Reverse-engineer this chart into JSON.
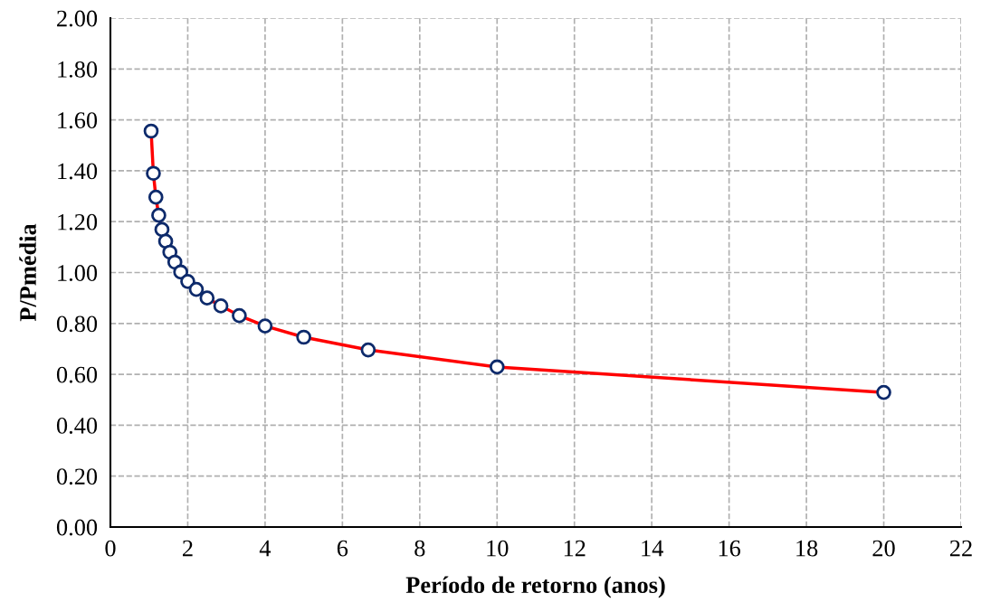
{
  "chart_data": {
    "type": "line",
    "xlabel": "Período de retorno (anos)",
    "ylabel": "P/Pmédia",
    "x": [
      1.053,
      1.111,
      1.176,
      1.25,
      1.333,
      1.429,
      1.538,
      1.667,
      1.818,
      2.0,
      2.222,
      2.5,
      2.857,
      3.333,
      4.0,
      5.0,
      6.667,
      10.0,
      20.0
    ],
    "series": [
      {
        "color": "#ff0000",
        "values": [
          1.556,
          1.39,
          1.296,
          1.225,
          1.169,
          1.123,
          1.08,
          1.041,
          1.002,
          0.965,
          0.934,
          0.9,
          0.869,
          0.831,
          0.79,
          0.746,
          0.696,
          0.629,
          0.529
        ]
      }
    ],
    "xlim": [
      0,
      22
    ],
    "xticks": [
      0,
      2,
      4,
      6,
      8,
      10,
      12,
      14,
      16,
      18,
      20,
      22
    ],
    "ylim": [
      0,
      2
    ],
    "yticks": [
      {
        "value": 0,
        "label": "0.00"
      },
      {
        "value": 0.2,
        "label": "0.20"
      },
      {
        "value": 0.4,
        "label": "0.40"
      },
      {
        "value": 0.6,
        "label": "0.60"
      },
      {
        "value": 0.8,
        "label": "0.80"
      },
      {
        "value": 1.0,
        "label": "1.00"
      },
      {
        "value": 1.2,
        "label": "1.20"
      },
      {
        "value": 1.4,
        "label": "1.40"
      },
      {
        "value": 1.6,
        "label": "1.60"
      },
      {
        "value": 1.8,
        "label": "1.80"
      },
      {
        "value": 2.0,
        "label": "2.00"
      }
    ],
    "grid": true,
    "marker": "circle",
    "line_style": "solid",
    "legend": false
  }
}
